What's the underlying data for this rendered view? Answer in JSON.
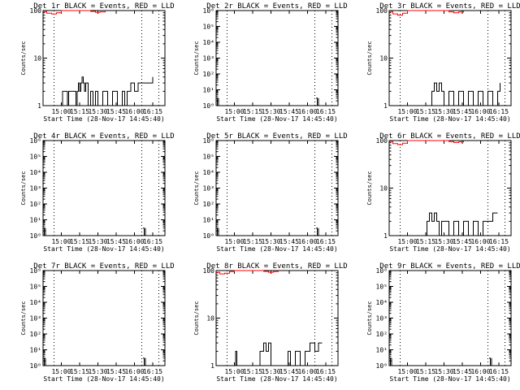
{
  "chart_data": [
    {
      "type": "line",
      "title": "Det 1r BLACK = Events, RED = LLD",
      "xlabel": "Start Time (28-Nov-17 14:45:40)",
      "ylabel": "Counts/sec",
      "yscale": "log",
      "yrange": [
        1,
        100
      ],
      "yticks": [
        "100",
        "10",
        "1"
      ],
      "xrange": [
        "14:45",
        "16:25"
      ],
      "xticks": [
        "15:00",
        "15:15",
        "15:30",
        "15:45",
        "16:00",
        "16:15"
      ],
      "vlines": [
        "14:54",
        "16:06",
        "16:20"
      ],
      "series": [
        {
          "color": "#000000",
          "x": [
            "15:00",
            "15:01",
            "15:05",
            "15:06",
            "15:12",
            "15:13",
            "15:14",
            "15:15",
            "15:16",
            "15:17",
            "15:18",
            "15:19",
            "15:20",
            "15:22",
            "15:24",
            "15:26",
            "15:28",
            "15:30",
            "15:34",
            "15:38",
            "15:42",
            "15:46",
            "15:50",
            "15:52",
            "15:54",
            "15:57",
            "16:00",
            "16:03",
            "16:06",
            "16:09",
            "16:12",
            "16:15"
          ],
          "y": [
            1,
            2,
            1,
            2,
            1,
            2,
            3,
            2,
            3,
            4,
            3,
            2,
            3,
            1,
            2,
            1,
            2,
            1,
            2,
            1,
            2,
            1,
            2,
            1,
            2,
            3,
            2,
            3,
            3,
            3,
            3,
            4
          ]
        },
        {
          "color": "#ff0000",
          "x": [
            "14:45",
            "14:48",
            "14:52",
            "14:56",
            "15:00",
            "15:20",
            "15:24",
            "15:28",
            "15:32",
            "15:36"
          ],
          "y": [
            95,
            88,
            85,
            90,
            100,
            100,
            96,
            92,
            94,
            100
          ]
        }
      ]
    },
    {
      "type": "line",
      "title": "Det 2r BLACK = Events, RED = LLD",
      "xlabel": "Start Time (28-Nov-17 14:45:40)",
      "ylabel": "Counts/sec",
      "yscale": "log",
      "yrange": [
        1,
        1000000
      ],
      "yticks": [
        "10⁶",
        "10⁵",
        "10⁴",
        "10³",
        "10²",
        "10¹",
        "10⁰"
      ],
      "xrange": [
        "14:45",
        "16:25"
      ],
      "xticks": [
        "15:00",
        "15:15",
        "15:30",
        "15:45",
        "16:00",
        "16:15"
      ],
      "vlines": [
        "14:54",
        "16:06",
        "16:20"
      ],
      "series": [
        {
          "color": "#000000",
          "x": [
            "14:45",
            "14:46",
            "14:47"
          ],
          "y": [
            3,
            1,
            3
          ]
        },
        {
          "color": "#000000",
          "x": [
            "16:07",
            "16:08",
            "16:09"
          ],
          "y": [
            3,
            1,
            3
          ]
        }
      ]
    },
    {
      "type": "line",
      "title": "Det 3r BLACK = Events, RED = LLD",
      "xlabel": "Start Time (28-Nov-17 14:45:40)",
      "ylabel": "Counts/sec",
      "yscale": "log",
      "yrange": [
        1,
        100
      ],
      "yticks": [
        "100",
        "10",
        "1"
      ],
      "xrange": [
        "14:45",
        "16:25"
      ],
      "xticks": [
        "15:00",
        "15:15",
        "15:30",
        "15:45",
        "16:00",
        "16:15"
      ],
      "vlines": [
        "14:54",
        "16:06",
        "16:20"
      ],
      "series": [
        {
          "color": "#000000",
          "x": [
            "15:18",
            "15:20",
            "15:22",
            "15:24",
            "15:26",
            "15:28",
            "15:30",
            "15:34",
            "15:38",
            "15:42",
            "15:46",
            "15:50",
            "15:54",
            "15:58",
            "16:02",
            "16:06",
            "16:10",
            "16:14",
            "16:16"
          ],
          "y": [
            1,
            2,
            3,
            2,
            3,
            2,
            1,
            2,
            1,
            2,
            1,
            2,
            1,
            2,
            1,
            2,
            1,
            2,
            3
          ]
        },
        {
          "color": "#ff0000",
          "x": [
            "14:45",
            "14:48",
            "14:52",
            "14:56",
            "15:00",
            "15:30",
            "15:34",
            "15:38",
            "15:42",
            "15:46"
          ],
          "y": [
            95,
            85,
            80,
            88,
            100,
            100,
            94,
            90,
            93,
            100
          ]
        }
      ]
    },
    {
      "type": "line",
      "title": "Det 4r BLACK = Events, RED = LLD",
      "xlabel": "Start Time (28-Nov-17 14:45:40)",
      "ylabel": "Counts/sec",
      "yscale": "log",
      "yrange": [
        1,
        1000000
      ],
      "yticks": [
        "10⁶",
        "10⁵",
        "10⁴",
        "10³",
        "10²",
        "10¹",
        "10⁰"
      ],
      "xrange": [
        "14:45",
        "16:25"
      ],
      "xticks": [
        "15:00",
        "15:15",
        "15:30",
        "15:45",
        "16:00",
        "16:15"
      ],
      "vlines": [
        "14:54",
        "16:06",
        "16:20"
      ],
      "series": [
        {
          "color": "#000000",
          "x": [
            "14:45",
            "14:46",
            "14:47"
          ],
          "y": [
            3,
            1,
            3
          ]
        },
        {
          "color": "#000000",
          "x": [
            "16:07",
            "16:08",
            "16:09"
          ],
          "y": [
            3,
            1,
            3
          ]
        }
      ]
    },
    {
      "type": "line",
      "title": "Det 5r BLACK = Events, RED = LLD",
      "xlabel": "Start Time (28-Nov-17 14:45:40)",
      "ylabel": "Counts/sec",
      "yscale": "log",
      "yrange": [
        1,
        1000000
      ],
      "yticks": [
        "10⁶",
        "10⁵",
        "10⁴",
        "10³",
        "10²",
        "10¹",
        "10⁰"
      ],
      "xrange": [
        "14:45",
        "16:25"
      ],
      "xticks": [
        "15:00",
        "15:15",
        "15:30",
        "15:45",
        "16:00",
        "16:15"
      ],
      "vlines": [
        "14:54",
        "16:06",
        "16:20"
      ],
      "series": [
        {
          "color": "#000000",
          "x": [
            "14:45",
            "14:46",
            "14:47"
          ],
          "y": [
            3,
            1,
            3
          ]
        },
        {
          "color": "#000000",
          "x": [
            "16:07",
            "16:08",
            "16:09"
          ],
          "y": [
            3,
            1,
            3
          ]
        }
      ]
    },
    {
      "type": "line",
      "title": "Det 6r BLACK = Events, RED = LLD",
      "xlabel": "Start Time (28-Nov-17 14:45:40)",
      "ylabel": "Counts/sec",
      "yscale": "log",
      "yrange": [
        1,
        100
      ],
      "yticks": [
        "100",
        "10",
        "1"
      ],
      "xrange": [
        "14:45",
        "16:25"
      ],
      "xticks": [
        "15:00",
        "15:15",
        "15:30",
        "15:45",
        "16:00",
        "16:15"
      ],
      "vlines": [
        "14:54",
        "16:06",
        "16:20"
      ],
      "series": [
        {
          "color": "#000000",
          "x": [
            "15:14",
            "15:16",
            "15:18",
            "15:20",
            "15:22",
            "15:24",
            "15:26",
            "15:28",
            "15:34",
            "15:38",
            "15:42",
            "15:46",
            "15:50",
            "15:54",
            "15:58",
            "16:02",
            "16:06",
            "16:10",
            "16:14"
          ],
          "y": [
            1,
            2,
            3,
            2,
            3,
            2,
            1,
            2,
            1,
            2,
            1,
            2,
            1,
            2,
            1,
            2,
            2,
            3,
            3
          ]
        },
        {
          "color": "#ff0000",
          "x": [
            "14:45",
            "14:48",
            "14:52",
            "14:56",
            "15:00",
            "15:30",
            "15:34",
            "15:38",
            "15:42",
            "15:46"
          ],
          "y": [
            95,
            86,
            82,
            88,
            100,
            100,
            95,
            91,
            94,
            100
          ]
        }
      ]
    },
    {
      "type": "line",
      "title": "Det 7r BLACK = Events, RED = LLD",
      "xlabel": "Start Time (28-Nov-17 14:45:40)",
      "ylabel": "Counts/sec",
      "yscale": "log",
      "yrange": [
        1,
        1000000
      ],
      "yticks": [
        "10⁶",
        "10⁵",
        "10⁴",
        "10³",
        "10²",
        "10¹",
        "10⁰"
      ],
      "xrange": [
        "14:45",
        "16:25"
      ],
      "xticks": [
        "15:00",
        "15:15",
        "15:30",
        "15:45",
        "16:00",
        "16:15"
      ],
      "vlines": [
        "14:54",
        "16:06",
        "16:20"
      ],
      "series": [
        {
          "color": "#000000",
          "x": [
            "14:45",
            "14:46",
            "14:47"
          ],
          "y": [
            3,
            1,
            3
          ]
        },
        {
          "color": "#000000",
          "x": [
            "16:07",
            "16:08",
            "16:09"
          ],
          "y": [
            3,
            1,
            3
          ]
        }
      ]
    },
    {
      "type": "line",
      "title": "Det 8r BLACK = Events, RED = LLD",
      "xlabel": "Start Time (28-Nov-17 14:45:40)",
      "ylabel": "Counts/sec",
      "yscale": "log",
      "yrange": [
        1,
        100
      ],
      "yticks": [
        "100",
        "10",
        "1"
      ],
      "xrange": [
        "14:45",
        "16:25"
      ],
      "xticks": [
        "15:00",
        "15:15",
        "15:30",
        "15:45",
        "16:00",
        "16:15"
      ],
      "vlines": [
        "14:54",
        "16:06",
        "16:20"
      ],
      "series": [
        {
          "color": "#000000",
          "x": [
            "15:00",
            "15:01",
            "15:02",
            "15:20",
            "15:21",
            "15:22",
            "15:24",
            "15:26",
            "15:28",
            "15:30",
            "15:42",
            "15:44",
            "15:46",
            "15:50",
            "15:54",
            "15:58",
            "16:02",
            "16:06",
            "16:09",
            "16:12"
          ],
          "y": [
            1,
            2,
            1,
            1,
            2,
            2,
            3,
            2,
            3,
            1,
            1,
            2,
            1,
            2,
            1,
            2,
            3,
            2,
            3,
            3
          ]
        },
        {
          "color": "#ff0000",
          "x": [
            "14:45",
            "14:48",
            "14:52",
            "14:56",
            "15:00",
            "15:04",
            "15:20",
            "15:24",
            "15:28",
            "15:32",
            "15:36"
          ],
          "y": [
            92,
            85,
            88,
            95,
            100,
            100,
            100,
            96,
            92,
            95,
            100
          ]
        }
      ]
    },
    {
      "type": "line",
      "title": "Det 9r BLACK = Events, RED = LLD",
      "xlabel": "Start Time (28-Nov-17 14:45:40)",
      "ylabel": "Counts/sec",
      "yscale": "log",
      "yrange": [
        1,
        1000000
      ],
      "yticks": [
        "10⁶",
        "10⁵",
        "10⁴",
        "10³",
        "10²",
        "10¹",
        "10⁰"
      ],
      "xrange": [
        "14:45",
        "16:25"
      ],
      "xticks": [
        "15:00",
        "15:15",
        "15:30",
        "15:45",
        "16:00",
        "16:15"
      ],
      "vlines": [
        "14:54",
        "16:06",
        "16:20"
      ],
      "series": [
        {
          "color": "#000000",
          "x": [
            "14:45",
            "14:46",
            "14:47"
          ],
          "y": [
            3,
            1,
            3
          ]
        },
        {
          "color": "#000000",
          "x": [
            "16:07",
            "16:08",
            "16:09"
          ],
          "y": [
            3,
            1,
            3
          ]
        }
      ]
    }
  ]
}
